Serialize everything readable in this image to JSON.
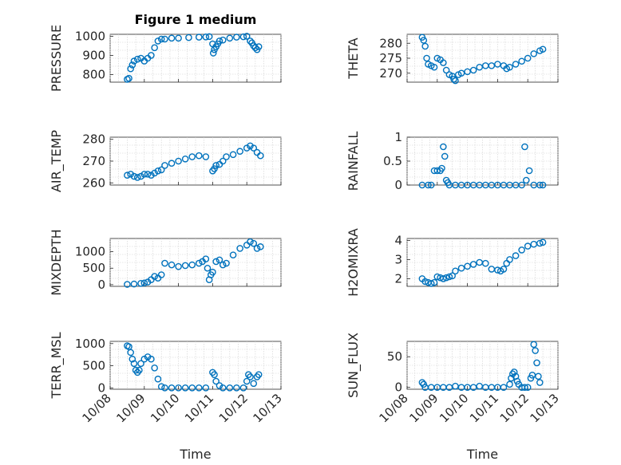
{
  "figure_title": "Figure 1 medium",
  "chart_data": [
    {
      "id": "pressure",
      "type": "scatter",
      "ylabel": "PRESSURE",
      "ylim": [
        760,
        1010
      ],
      "yticks": [
        800,
        900,
        1000
      ],
      "x_label": "",
      "points": [
        [
          8.5,
          775
        ],
        [
          8.55,
          780
        ],
        [
          8.6,
          830
        ],
        [
          8.65,
          850
        ],
        [
          8.7,
          870
        ],
        [
          8.8,
          880
        ],
        [
          8.9,
          885
        ],
        [
          9.0,
          870
        ],
        [
          9.1,
          885
        ],
        [
          9.2,
          900
        ],
        [
          9.3,
          940
        ],
        [
          9.4,
          975
        ],
        [
          9.5,
          985
        ],
        [
          9.6,
          985
        ],
        [
          9.8,
          990
        ],
        [
          10.0,
          990
        ],
        [
          10.3,
          993
        ],
        [
          10.6,
          995
        ],
        [
          10.8,
          996
        ],
        [
          10.9,
          998
        ],
        [
          11.0,
          960
        ],
        [
          11.02,
          912
        ],
        [
          11.05,
          930
        ],
        [
          11.1,
          945
        ],
        [
          11.15,
          960
        ],
        [
          11.2,
          975
        ],
        [
          11.3,
          980
        ],
        [
          11.5,
          990
        ],
        [
          11.7,
          995
        ],
        [
          11.9,
          997
        ],
        [
          12.0,
          1000
        ],
        [
          12.1,
          975
        ],
        [
          12.15,
          965
        ],
        [
          12.2,
          950
        ],
        [
          12.25,
          940
        ],
        [
          12.3,
          930
        ],
        [
          12.35,
          945
        ]
      ]
    },
    {
      "id": "theta",
      "type": "scatter",
      "ylabel": "THETA",
      "ylim": [
        267,
        283
      ],
      "yticks": [
        270,
        275,
        280
      ],
      "x_label": "",
      "points": [
        [
          8.5,
          282
        ],
        [
          8.55,
          281
        ],
        [
          8.6,
          279
        ],
        [
          8.65,
          275
        ],
        [
          8.7,
          273
        ],
        [
          8.8,
          272.5
        ],
        [
          8.9,
          272
        ],
        [
          9.0,
          275
        ],
        [
          9.1,
          274.5
        ],
        [
          9.2,
          273.5
        ],
        [
          9.3,
          271
        ],
        [
          9.4,
          269.5
        ],
        [
          9.5,
          269
        ],
        [
          9.55,
          268
        ],
        [
          9.6,
          267.5
        ],
        [
          9.7,
          269.5
        ],
        [
          9.8,
          270
        ],
        [
          10.0,
          270.5
        ],
        [
          10.2,
          271
        ],
        [
          10.4,
          272
        ],
        [
          10.6,
          272.5
        ],
        [
          10.8,
          272.5
        ],
        [
          11.0,
          273
        ],
        [
          11.2,
          272.5
        ],
        [
          11.3,
          271.5
        ],
        [
          11.4,
          272
        ],
        [
          11.6,
          273
        ],
        [
          11.8,
          274
        ],
        [
          12.0,
          275
        ],
        [
          12.2,
          276.5
        ],
        [
          12.4,
          277.5
        ],
        [
          12.5,
          278
        ]
      ]
    },
    {
      "id": "air_temp",
      "type": "scatter",
      "ylabel": "AIR_TEMP",
      "ylim": [
        259,
        281
      ],
      "yticks": [
        260,
        270,
        280
      ],
      "x_label": "",
      "points": [
        [
          8.5,
          263.5
        ],
        [
          8.6,
          264
        ],
        [
          8.7,
          263
        ],
        [
          8.8,
          262.5
        ],
        [
          8.9,
          263
        ],
        [
          9.0,
          264
        ],
        [
          9.1,
          264
        ],
        [
          9.2,
          263.5
        ],
        [
          9.3,
          264.5
        ],
        [
          9.4,
          265.5
        ],
        [
          9.5,
          266
        ],
        [
          9.6,
          268
        ],
        [
          9.8,
          269
        ],
        [
          10.0,
          270
        ],
        [
          10.2,
          271
        ],
        [
          10.4,
          272
        ],
        [
          10.6,
          272.5
        ],
        [
          10.8,
          272
        ],
        [
          11.0,
          265.5
        ],
        [
          11.05,
          266.5
        ],
        [
          11.1,
          268
        ],
        [
          11.2,
          268.5
        ],
        [
          11.3,
          270
        ],
        [
          11.4,
          272
        ],
        [
          11.6,
          273
        ],
        [
          11.8,
          274.5
        ],
        [
          12.0,
          276
        ],
        [
          12.1,
          277
        ],
        [
          12.2,
          276
        ],
        [
          12.3,
          274
        ],
        [
          12.4,
          272.5
        ]
      ]
    },
    {
      "id": "rainfall",
      "type": "scatter",
      "ylabel": "RAINFALL",
      "ylim": [
        0,
        1
      ],
      "yticks": [
        0,
        0.5,
        1
      ],
      "x_label": "",
      "points": [
        [
          8.5,
          0
        ],
        [
          8.7,
          0
        ],
        [
          8.8,
          0
        ],
        [
          8.9,
          0.3
        ],
        [
          9.0,
          0.3
        ],
        [
          9.1,
          0.3
        ],
        [
          9.15,
          0.35
        ],
        [
          9.2,
          0.8
        ],
        [
          9.25,
          0.6
        ],
        [
          9.3,
          0.1
        ],
        [
          9.35,
          0.05
        ],
        [
          9.4,
          0
        ],
        [
          9.6,
          0
        ],
        [
          9.8,
          0
        ],
        [
          10.0,
          0
        ],
        [
          10.2,
          0
        ],
        [
          10.4,
          0
        ],
        [
          10.6,
          0
        ],
        [
          10.8,
          0
        ],
        [
          11.0,
          0
        ],
        [
          11.2,
          0
        ],
        [
          11.4,
          0
        ],
        [
          11.6,
          0
        ],
        [
          11.8,
          0
        ],
        [
          11.9,
          0.8
        ],
        [
          11.95,
          0.1
        ],
        [
          12.05,
          0.3
        ],
        [
          12.2,
          0
        ],
        [
          12.4,
          0
        ],
        [
          12.5,
          0
        ]
      ]
    },
    {
      "id": "mixdepth",
      "type": "scatter",
      "ylabel": "MIXDEPTH",
      "ylim": [
        -50,
        1400
      ],
      "yticks": [
        0,
        500,
        1000
      ],
      "x_label": "",
      "points": [
        [
          8.5,
          10
        ],
        [
          8.7,
          20
        ],
        [
          8.9,
          40
        ],
        [
          9.0,
          50
        ],
        [
          9.1,
          80
        ],
        [
          9.2,
          150
        ],
        [
          9.3,
          250
        ],
        [
          9.4,
          200
        ],
        [
          9.5,
          300
        ],
        [
          9.6,
          650
        ],
        [
          9.8,
          600
        ],
        [
          10.0,
          550
        ],
        [
          10.2,
          580
        ],
        [
          10.4,
          600
        ],
        [
          10.6,
          650
        ],
        [
          10.7,
          700
        ],
        [
          10.8,
          780
        ],
        [
          10.85,
          500
        ],
        [
          10.9,
          150
        ],
        [
          10.95,
          300
        ],
        [
          11.0,
          380
        ],
        [
          11.1,
          700
        ],
        [
          11.2,
          750
        ],
        [
          11.3,
          600
        ],
        [
          11.4,
          650
        ],
        [
          11.6,
          900
        ],
        [
          11.8,
          1100
        ],
        [
          12.0,
          1200
        ],
        [
          12.1,
          1300
        ],
        [
          12.2,
          1250
        ],
        [
          12.3,
          1100
        ],
        [
          12.4,
          1150
        ]
      ]
    },
    {
      "id": "h2omixra",
      "type": "scatter",
      "ylabel": "H2OMIXRA",
      "ylim": [
        1.6,
        4.1
      ],
      "yticks": [
        2,
        3,
        4
      ],
      "x_label": "",
      "points": [
        [
          8.5,
          2.0
        ],
        [
          8.6,
          1.85
        ],
        [
          8.7,
          1.8
        ],
        [
          8.8,
          1.75
        ],
        [
          8.9,
          1.8
        ],
        [
          9.0,
          2.1
        ],
        [
          9.1,
          2.05
        ],
        [
          9.2,
          2.0
        ],
        [
          9.3,
          2.05
        ],
        [
          9.4,
          2.1
        ],
        [
          9.5,
          2.15
        ],
        [
          9.6,
          2.4
        ],
        [
          9.8,
          2.55
        ],
        [
          10.0,
          2.65
        ],
        [
          10.2,
          2.75
        ],
        [
          10.4,
          2.85
        ],
        [
          10.6,
          2.8
        ],
        [
          10.8,
          2.5
        ],
        [
          11.0,
          2.45
        ],
        [
          11.1,
          2.4
        ],
        [
          11.2,
          2.5
        ],
        [
          11.3,
          2.8
        ],
        [
          11.4,
          3.0
        ],
        [
          11.6,
          3.2
        ],
        [
          11.8,
          3.5
        ],
        [
          12.0,
          3.7
        ],
        [
          12.2,
          3.8
        ],
        [
          12.4,
          3.85
        ],
        [
          12.5,
          3.9
        ]
      ]
    },
    {
      "id": "terr_msl",
      "type": "scatter",
      "ylabel": "TERR_MSL",
      "ylim": [
        -30,
        1050
      ],
      "yticks": [
        0,
        500,
        1000
      ],
      "x_label": "Time",
      "points": [
        [
          8.5,
          950
        ],
        [
          8.55,
          930
        ],
        [
          8.6,
          800
        ],
        [
          8.65,
          650
        ],
        [
          8.7,
          550
        ],
        [
          8.75,
          400
        ],
        [
          8.8,
          350
        ],
        [
          8.85,
          400
        ],
        [
          8.9,
          550
        ],
        [
          9.0,
          650
        ],
        [
          9.1,
          700
        ],
        [
          9.2,
          650
        ],
        [
          9.3,
          450
        ],
        [
          9.4,
          200
        ],
        [
          9.5,
          30
        ],
        [
          9.6,
          0
        ],
        [
          9.8,
          0
        ],
        [
          10.0,
          0
        ],
        [
          10.2,
          0
        ],
        [
          10.4,
          0
        ],
        [
          10.6,
          0
        ],
        [
          10.8,
          0
        ],
        [
          11.0,
          350
        ],
        [
          11.05,
          300
        ],
        [
          11.1,
          150
        ],
        [
          11.2,
          50
        ],
        [
          11.3,
          0
        ],
        [
          11.5,
          0
        ],
        [
          11.7,
          0
        ],
        [
          11.9,
          0
        ],
        [
          12.0,
          150
        ],
        [
          12.05,
          300
        ],
        [
          12.1,
          250
        ],
        [
          12.2,
          100
        ],
        [
          12.3,
          250
        ],
        [
          12.35,
          300
        ]
      ]
    },
    {
      "id": "sun_flux",
      "type": "scatter",
      "ylabel": "SUN_FLUX",
      "ylim": [
        -3,
        75
      ],
      "yticks": [
        0,
        50
      ],
      "x_label": "Time",
      "points": [
        [
          8.5,
          8
        ],
        [
          8.55,
          5
        ],
        [
          8.6,
          0
        ],
        [
          8.8,
          0
        ],
        [
          9.0,
          0
        ],
        [
          9.2,
          0
        ],
        [
          9.4,
          0
        ],
        [
          9.6,
          2
        ],
        [
          9.8,
          0
        ],
        [
          10.0,
          0
        ],
        [
          10.2,
          0
        ],
        [
          10.4,
          2
        ],
        [
          10.6,
          0
        ],
        [
          10.8,
          0
        ],
        [
          11.0,
          0
        ],
        [
          11.2,
          0
        ],
        [
          11.4,
          5
        ],
        [
          11.45,
          15
        ],
        [
          11.5,
          22
        ],
        [
          11.55,
          25
        ],
        [
          11.6,
          18
        ],
        [
          11.65,
          10
        ],
        [
          11.7,
          5
        ],
        [
          11.8,
          0
        ],
        [
          11.9,
          0
        ],
        [
          12.0,
          0
        ],
        [
          12.1,
          15
        ],
        [
          12.15,
          20
        ],
        [
          12.2,
          70
        ],
        [
          12.25,
          60
        ],
        [
          12.3,
          40
        ],
        [
          12.35,
          18
        ],
        [
          12.4,
          8
        ]
      ]
    }
  ],
  "x_axis": {
    "range": [
      8,
      13
    ],
    "tick_values": [
      8,
      9,
      10,
      11,
      12,
      13
    ],
    "tick_labels": [
      "10/08",
      "10/09",
      "10/10",
      "10/11",
      "10/12",
      "10/13"
    ]
  },
  "colors": {
    "marker": "#0072BD",
    "grid": "#cfcfcf",
    "axis": "#262626"
  }
}
